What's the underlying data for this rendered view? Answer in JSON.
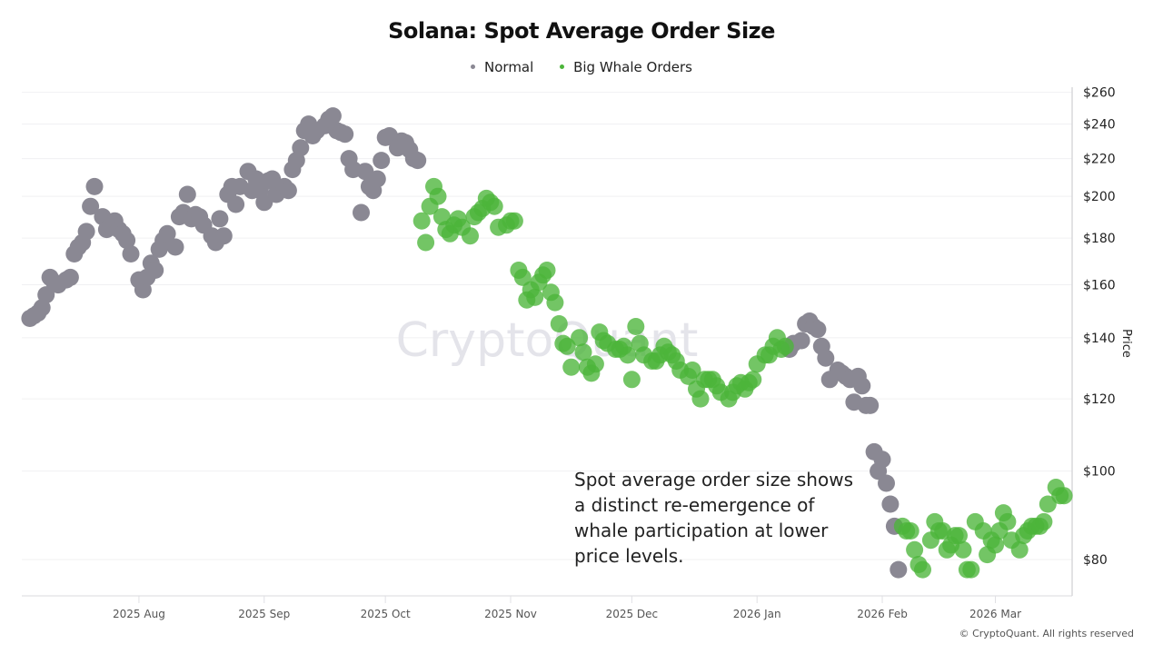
{
  "chart_data": {
    "type": "scatter",
    "title": "Solana: Spot Average Order Size",
    "ylabel": "Price",
    "yscale": "log",
    "ylim": [
      73,
      261
    ],
    "xlim": [
      "2025-07-03",
      "2026-03-20"
    ],
    "yticks": [
      80,
      100,
      120,
      140,
      160,
      180,
      200,
      220,
      240,
      260
    ],
    "ytick_labels": [
      "$80",
      "$100",
      "$120",
      "$140",
      "$160",
      "$180",
      "$200",
      "$220",
      "$240",
      "$260"
    ],
    "xticks": [
      "2025-08-01",
      "2025-09-01",
      "2025-10-01",
      "2025-11-01",
      "2025-12-01",
      "2026-01-01",
      "2026-02-01",
      "2026-03-01"
    ],
    "xtick_labels": [
      "2025 Aug",
      "2025 Sep",
      "2025 Oct",
      "2025 Nov",
      "2025 Dec",
      "2026 Jan",
      "2026 Feb",
      "2026 Mar"
    ],
    "grid": "horizontal",
    "legend_position": "top-center",
    "watermark": "CryptoQuant",
    "annotation": "Spot average order size shows a distinct re-emergence of whale participation at lower price levels.",
    "series": [
      {
        "name": "Normal",
        "color": "#8a8893",
        "points": [
          [
            "2025-07-05",
            147
          ],
          [
            "2025-07-06",
            148
          ],
          [
            "2025-07-07",
            149
          ],
          [
            "2025-07-08",
            151
          ],
          [
            "2025-07-09",
            156
          ],
          [
            "2025-07-10",
            163
          ],
          [
            "2025-07-11",
            161
          ],
          [
            "2025-07-12",
            160
          ],
          [
            "2025-07-14",
            162
          ],
          [
            "2025-07-15",
            163
          ],
          [
            "2025-07-16",
            173
          ],
          [
            "2025-07-17",
            176
          ],
          [
            "2025-07-18",
            178
          ],
          [
            "2025-07-19",
            183
          ],
          [
            "2025-07-20",
            195
          ],
          [
            "2025-07-21",
            205
          ],
          [
            "2025-07-23",
            190
          ],
          [
            "2025-07-24",
            184
          ],
          [
            "2025-07-25",
            186
          ],
          [
            "2025-07-26",
            188
          ],
          [
            "2025-07-27",
            184
          ],
          [
            "2025-07-28",
            182
          ],
          [
            "2025-07-29",
            179
          ],
          [
            "2025-07-30",
            173
          ],
          [
            "2025-08-01",
            162
          ],
          [
            "2025-08-02",
            158
          ],
          [
            "2025-08-03",
            163
          ],
          [
            "2025-08-04",
            169
          ],
          [
            "2025-08-05",
            166
          ],
          [
            "2025-08-06",
            175
          ],
          [
            "2025-08-07",
            179
          ],
          [
            "2025-08-08",
            182
          ],
          [
            "2025-08-10",
            176
          ],
          [
            "2025-08-11",
            190
          ],
          [
            "2025-08-12",
            192
          ],
          [
            "2025-08-13",
            201
          ],
          [
            "2025-08-14",
            189
          ],
          [
            "2025-08-15",
            191
          ],
          [
            "2025-08-16",
            190
          ],
          [
            "2025-08-17",
            186
          ],
          [
            "2025-08-19",
            181
          ],
          [
            "2025-08-20",
            178
          ],
          [
            "2025-08-21",
            189
          ],
          [
            "2025-08-22",
            181
          ],
          [
            "2025-08-23",
            201
          ],
          [
            "2025-08-24",
            205
          ],
          [
            "2025-08-25",
            196
          ],
          [
            "2025-08-26",
            205
          ],
          [
            "2025-08-28",
            213
          ],
          [
            "2025-08-29",
            203
          ],
          [
            "2025-08-30",
            209
          ],
          [
            "2025-08-31",
            203
          ],
          [
            "2025-09-01",
            197
          ],
          [
            "2025-09-02",
            208
          ],
          [
            "2025-09-03",
            209
          ],
          [
            "2025-09-04",
            201
          ],
          [
            "2025-09-06",
            205
          ],
          [
            "2025-09-07",
            203
          ],
          [
            "2025-09-08",
            214
          ],
          [
            "2025-09-09",
            219
          ],
          [
            "2025-09-10",
            226
          ],
          [
            "2025-09-11",
            236
          ],
          [
            "2025-09-12",
            240
          ],
          [
            "2025-09-13",
            233
          ],
          [
            "2025-09-14",
            236
          ],
          [
            "2025-09-16",
            239
          ],
          [
            "2025-09-17",
            243
          ],
          [
            "2025-09-18",
            245
          ],
          [
            "2025-09-19",
            236
          ],
          [
            "2025-09-20",
            235
          ],
          [
            "2025-09-21",
            234
          ],
          [
            "2025-09-22",
            220
          ],
          [
            "2025-09-23",
            214
          ],
          [
            "2025-09-25",
            192
          ],
          [
            "2025-09-26",
            213
          ],
          [
            "2025-09-27",
            205
          ],
          [
            "2025-09-28",
            203
          ],
          [
            "2025-09-29",
            209
          ],
          [
            "2025-09-30",
            219
          ],
          [
            "2025-10-01",
            232
          ],
          [
            "2025-10-02",
            233
          ],
          [
            "2025-10-04",
            226
          ],
          [
            "2025-10-05",
            230
          ],
          [
            "2025-10-06",
            229
          ],
          [
            "2025-10-07",
            225
          ],
          [
            "2025-10-08",
            220
          ],
          [
            "2025-10-09",
            219
          ],
          [
            "2026-01-09",
            136
          ],
          [
            "2026-01-10",
            138
          ],
          [
            "2026-01-12",
            139
          ],
          [
            "2026-01-13",
            145
          ],
          [
            "2026-01-14",
            146
          ],
          [
            "2026-01-15",
            144
          ],
          [
            "2026-01-16",
            143
          ],
          [
            "2026-01-17",
            137
          ],
          [
            "2026-01-18",
            133
          ],
          [
            "2026-01-19",
            126
          ],
          [
            "2026-01-21",
            129
          ],
          [
            "2026-01-22",
            128
          ],
          [
            "2026-01-23",
            127
          ],
          [
            "2026-01-24",
            126
          ],
          [
            "2026-01-25",
            119
          ],
          [
            "2026-01-26",
            127
          ],
          [
            "2026-01-27",
            124
          ],
          [
            "2026-01-28",
            118
          ],
          [
            "2026-01-29",
            118
          ],
          [
            "2026-01-30",
            105
          ],
          [
            "2026-01-31",
            100
          ],
          [
            "2026-02-01",
            103
          ],
          [
            "2026-02-02",
            97
          ],
          [
            "2026-02-03",
            92
          ],
          [
            "2026-02-04",
            87
          ],
          [
            "2026-02-05",
            78
          ]
        ]
      },
      {
        "name": "Big Whale Orders",
        "color": "#4cb53a",
        "points": [
          [
            "2025-10-10",
            188
          ],
          [
            "2025-10-11",
            178
          ],
          [
            "2025-10-12",
            195
          ],
          [
            "2025-10-13",
            205
          ],
          [
            "2025-10-14",
            200
          ],
          [
            "2025-10-15",
            190
          ],
          [
            "2025-10-16",
            184
          ],
          [
            "2025-10-17",
            182
          ],
          [
            "2025-10-18",
            186
          ],
          [
            "2025-10-19",
            189
          ],
          [
            "2025-10-20",
            185
          ],
          [
            "2025-10-22",
            181
          ],
          [
            "2025-10-23",
            190
          ],
          [
            "2025-10-24",
            192
          ],
          [
            "2025-10-25",
            194
          ],
          [
            "2025-10-26",
            199
          ],
          [
            "2025-10-27",
            197
          ],
          [
            "2025-10-28",
            195
          ],
          [
            "2025-10-29",
            185
          ],
          [
            "2025-10-31",
            186
          ],
          [
            "2025-11-01",
            188
          ],
          [
            "2025-11-02",
            188
          ],
          [
            "2025-11-03",
            166
          ],
          [
            "2025-11-04",
            163
          ],
          [
            "2025-11-05",
            154
          ],
          [
            "2025-11-06",
            158
          ],
          [
            "2025-11-07",
            155
          ],
          [
            "2025-11-08",
            161
          ],
          [
            "2025-11-09",
            164
          ],
          [
            "2025-11-10",
            166
          ],
          [
            "2025-11-11",
            157
          ],
          [
            "2025-11-12",
            153
          ],
          [
            "2025-11-13",
            145
          ],
          [
            "2025-11-14",
            138
          ],
          [
            "2025-11-15",
            137
          ],
          [
            "2025-11-16",
            130
          ],
          [
            "2025-11-18",
            140
          ],
          [
            "2025-11-19",
            135
          ],
          [
            "2025-11-20",
            130
          ],
          [
            "2025-11-21",
            128
          ],
          [
            "2025-11-22",
            131
          ],
          [
            "2025-11-23",
            142
          ],
          [
            "2025-11-24",
            139
          ],
          [
            "2025-11-25",
            138
          ],
          [
            "2025-11-27",
            136
          ],
          [
            "2025-11-28",
            136
          ],
          [
            "2025-11-29",
            137
          ],
          [
            "2025-11-30",
            134
          ],
          [
            "2025-12-01",
            126
          ],
          [
            "2025-12-02",
            144
          ],
          [
            "2025-12-03",
            138
          ],
          [
            "2025-12-04",
            134
          ],
          [
            "2025-12-06",
            132
          ],
          [
            "2025-12-07",
            132
          ],
          [
            "2025-12-08",
            134
          ],
          [
            "2025-12-09",
            137
          ],
          [
            "2025-12-10",
            135
          ],
          [
            "2025-12-11",
            134
          ],
          [
            "2025-12-12",
            132
          ],
          [
            "2025-12-13",
            129
          ],
          [
            "2025-12-15",
            127
          ],
          [
            "2025-12-16",
            129
          ],
          [
            "2025-12-17",
            123
          ],
          [
            "2025-12-18",
            120
          ],
          [
            "2025-12-19",
            126
          ],
          [
            "2025-12-20",
            126
          ],
          [
            "2025-12-21",
            126
          ],
          [
            "2025-12-22",
            124
          ],
          [
            "2025-12-23",
            122
          ],
          [
            "2025-12-25",
            120
          ],
          [
            "2025-12-26",
            122
          ],
          [
            "2025-12-27",
            124
          ],
          [
            "2025-12-28",
            125
          ],
          [
            "2025-12-29",
            123
          ],
          [
            "2025-12-30",
            125
          ],
          [
            "2025-12-31",
            126
          ],
          [
            "2026-01-01",
            131
          ],
          [
            "2026-01-03",
            134
          ],
          [
            "2026-01-04",
            134
          ],
          [
            "2026-01-05",
            137
          ],
          [
            "2026-01-06",
            140
          ],
          [
            "2026-01-07",
            136
          ],
          [
            "2026-01-08",
            137
          ],
          [
            "2026-02-06",
            87
          ],
          [
            "2026-02-07",
            86
          ],
          [
            "2026-02-08",
            86
          ],
          [
            "2026-02-09",
            82
          ],
          [
            "2026-02-10",
            79
          ],
          [
            "2026-02-11",
            78
          ],
          [
            "2026-02-13",
            84
          ],
          [
            "2026-02-14",
            88
          ],
          [
            "2026-02-15",
            86
          ],
          [
            "2026-02-16",
            86
          ],
          [
            "2026-02-17",
            82
          ],
          [
            "2026-02-18",
            83
          ],
          [
            "2026-02-19",
            85
          ],
          [
            "2026-02-20",
            85
          ],
          [
            "2026-02-21",
            82
          ],
          [
            "2026-02-22",
            78
          ],
          [
            "2026-02-23",
            78
          ],
          [
            "2026-02-24",
            88
          ],
          [
            "2026-02-26",
            86
          ],
          [
            "2026-02-27",
            81
          ],
          [
            "2026-02-28",
            84
          ],
          [
            "2026-03-01",
            83
          ],
          [
            "2026-03-02",
            86
          ],
          [
            "2026-03-03",
            90
          ],
          [
            "2026-03-04",
            88
          ],
          [
            "2026-03-05",
            84
          ],
          [
            "2026-03-07",
            82
          ],
          [
            "2026-03-08",
            85
          ],
          [
            "2026-03-09",
            86
          ],
          [
            "2026-03-10",
            87
          ],
          [
            "2026-03-11",
            87
          ],
          [
            "2026-03-12",
            87
          ],
          [
            "2026-03-13",
            88
          ],
          [
            "2026-03-14",
            92
          ],
          [
            "2026-03-16",
            96
          ],
          [
            "2026-03-17",
            94
          ],
          [
            "2026-03-18",
            94
          ]
        ]
      }
    ]
  },
  "footer": "© CryptoQuant. All rights reserved"
}
